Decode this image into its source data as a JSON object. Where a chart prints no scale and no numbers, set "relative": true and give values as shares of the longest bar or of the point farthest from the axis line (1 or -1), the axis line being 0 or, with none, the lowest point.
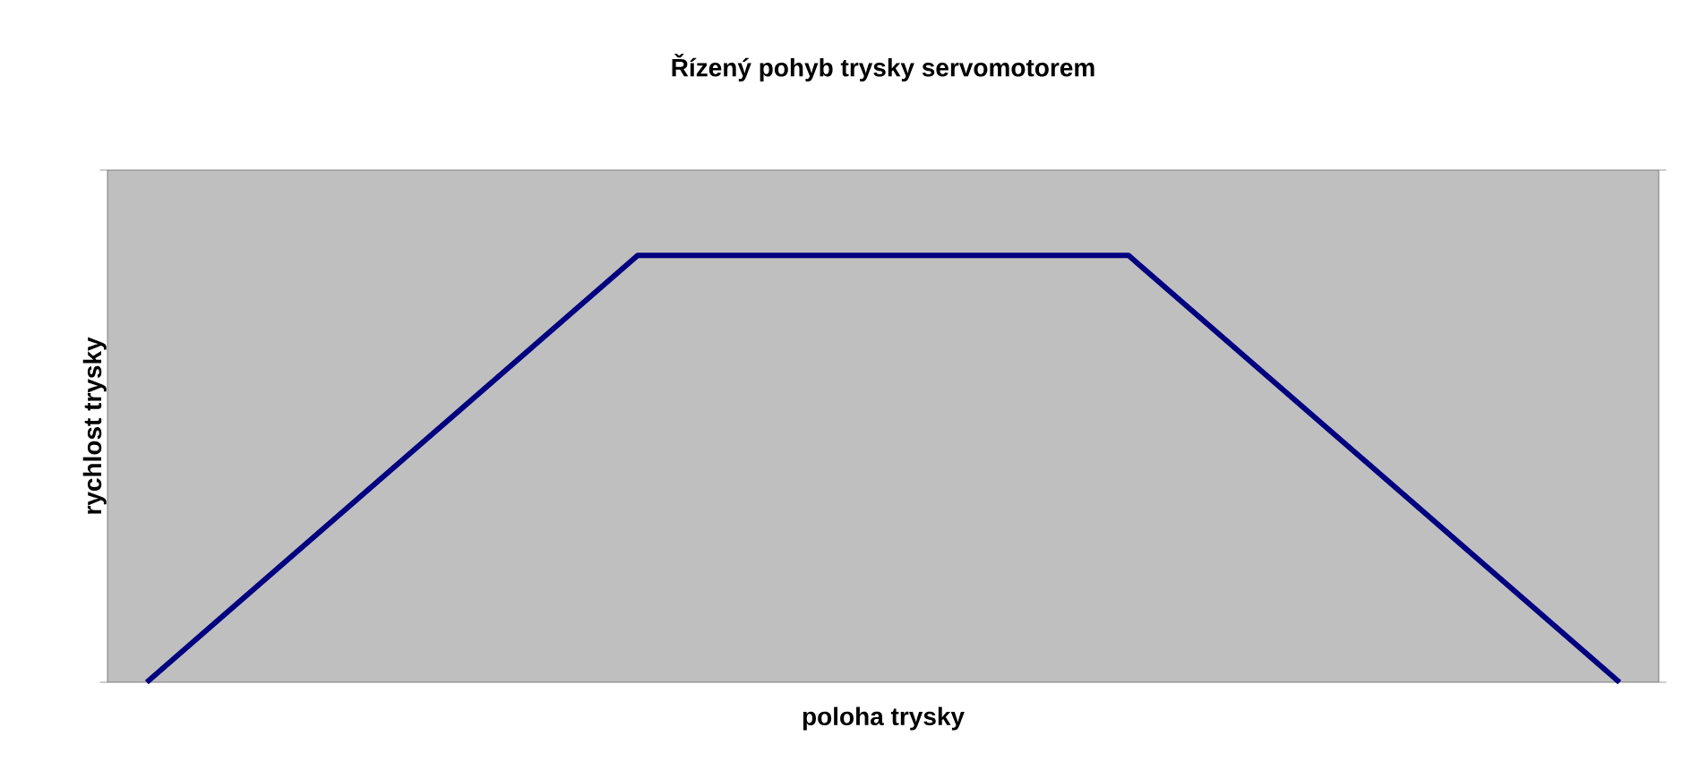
{
  "chart_data": {
    "type": "line",
    "title": "Řízený pohyb trysky servomotorem",
    "xlabel": "poloha trysky",
    "ylabel": "rychlost trysky",
    "relative": true,
    "categories": [
      null,
      null,
      null,
      null
    ],
    "series": [
      {
        "color": "#000080",
        "values": [
          0,
          1,
          1,
          0
        ]
      }
    ],
    "marker": "none",
    "line_style": "solid"
  }
}
